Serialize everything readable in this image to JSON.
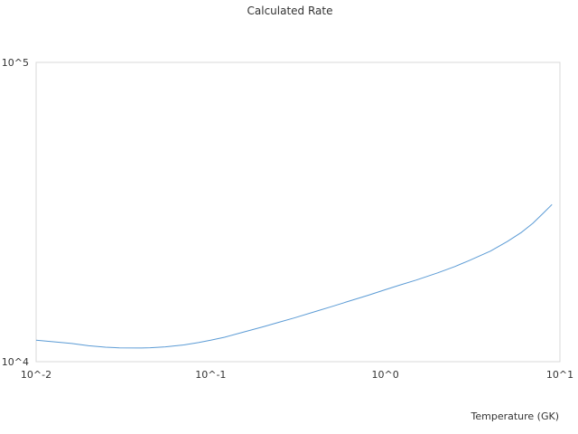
{
  "chart_data": {
    "type": "line",
    "title": "Calculated Rate",
    "xlabel": "Temperature (GK)",
    "ylabel": "",
    "x_scale": "log",
    "y_scale": "log",
    "xlim": [
      0.01,
      10
    ],
    "ylim": [
      10000,
      100000
    ],
    "x_ticks": [
      {
        "value": 0.01,
        "label": "10^-2"
      },
      {
        "value": 0.1,
        "label": "10^-1"
      },
      {
        "value": 1,
        "label": "10^0"
      },
      {
        "value": 10,
        "label": "10^1"
      }
    ],
    "y_ticks": [
      {
        "value": 10000,
        "label": "10^4"
      },
      {
        "value": 100000,
        "label": "10^5"
      }
    ],
    "grid": false,
    "legend": "none",
    "series": [
      {
        "color": "#5b9bd5",
        "x": [
          0.01,
          0.013,
          0.016,
          0.02,
          0.025,
          0.03,
          0.04,
          0.045,
          0.055,
          0.07,
          0.085,
          0.1,
          0.12,
          0.15,
          0.2,
          0.25,
          0.3,
          0.4,
          0.5,
          0.6,
          0.8,
          1.0,
          1.2,
          1.5,
          2.0,
          2.5,
          3.0,
          4.0,
          5.0,
          6.0,
          7.0,
          8.0,
          9.0
        ],
        "y": [
          11790,
          11640,
          11500,
          11300,
          11180,
          11120,
          11110,
          11130,
          11210,
          11370,
          11580,
          11790,
          12070,
          12500,
          13080,
          13580,
          13990,
          14720,
          15320,
          15840,
          16680,
          17400,
          18000,
          18730,
          19820,
          20790,
          21740,
          23420,
          25200,
          27000,
          29000,
          31300,
          33500
        ]
      }
    ]
  }
}
